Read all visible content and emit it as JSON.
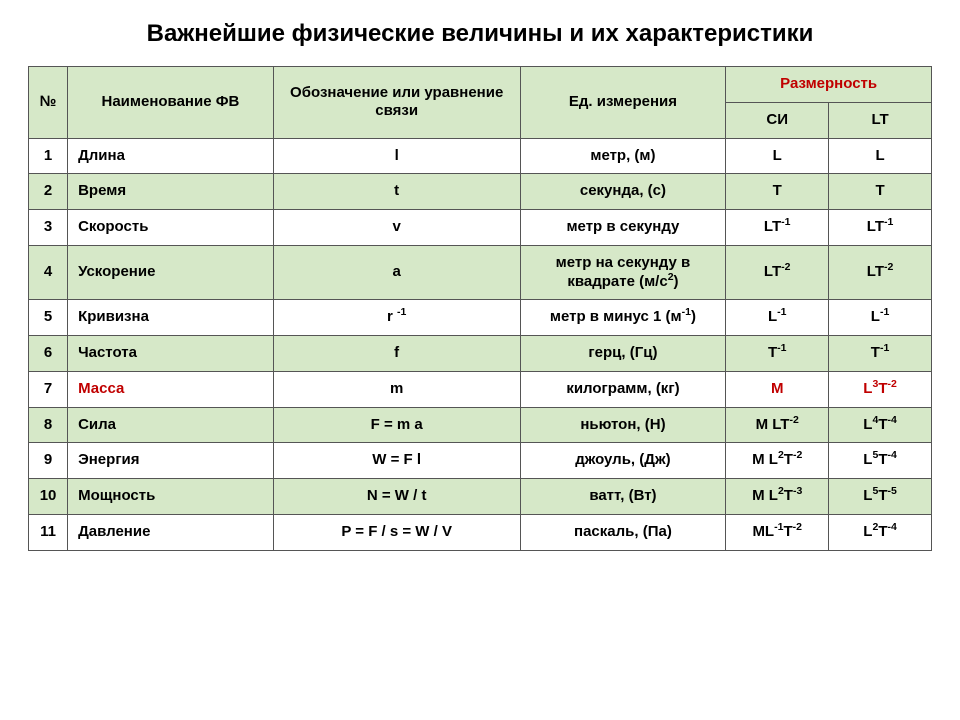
{
  "title": "Важнейшие физические величины и их характеристики",
  "columns": {
    "num": "№",
    "name": "Наименование ФВ",
    "symbol": "Обозначение или уравнение связи",
    "unit": "Ед. измерения",
    "dim_group": "Размерность",
    "si": "СИ",
    "lt": "LT"
  },
  "col_widths": [
    "38px",
    "200px",
    "240px",
    "200px",
    "100px",
    "100px"
  ],
  "header_bg": "#d6e8c8",
  "alt_bg": "#d6e8c8",
  "border_color": "#555555",
  "highlight_color": "#c00000",
  "rows": [
    {
      "n": "1",
      "name": "Длина",
      "sym_html": "l",
      "unit_html": "метр, (м)",
      "si_html": "L",
      "lt_html": "L"
    },
    {
      "n": "2",
      "name": "Время",
      "sym_html": "t",
      "unit_html": "секунда, (с)",
      "si_html": "T",
      "lt_html": "T"
    },
    {
      "n": "3",
      "name": "Скорость",
      "sym_html": "v",
      "unit_html": "метр в секунду",
      "si_html": "LT<sup>-1</sup>",
      "lt_html": "LT<sup>-1</sup>"
    },
    {
      "n": "4",
      "name": "Ускорение",
      "sym_html": "a",
      "unit_html": "метр на секунду в квадрате (м/с<sup>2</sup>)",
      "si_html": "LT<sup>-2</sup>",
      "lt_html": "LT<sup>-2</sup>"
    },
    {
      "n": "5",
      "name": "Кривизна",
      "sym_html": "r <sup>-1</sup>",
      "unit_html": "метр в минус 1 (м<sup>-1</sup>)",
      "si_html": "L<sup>-1</sup>",
      "lt_html": "L<sup>-1</sup>"
    },
    {
      "n": "6",
      "name": "Частота",
      "sym_html": "f",
      "unit_html": "герц, (Гц)",
      "si_html": "T<sup>-1</sup>",
      "lt_html": "T<sup>-1</sup>"
    },
    {
      "n": "7",
      "name": "Масса",
      "name_red": true,
      "sym_html": "m",
      "unit_html": "килограмм, (кг)",
      "si_html": "M",
      "si_red": true,
      "lt_html": "L<sup>3</sup>T<sup>-2</sup>",
      "lt_red": true
    },
    {
      "n": "8",
      "name": "Сила",
      "sym_html": "F = m a",
      "unit_html": "ньютон, (Н)",
      "si_html": "M LT<sup>-2</sup>",
      "lt_html": "L<sup>4</sup>T<sup>-4</sup>"
    },
    {
      "n": "9",
      "name": "Энергия",
      "sym_html": "W = F l",
      "unit_html": "джоуль, (Дж)",
      "si_html": "M L<sup>2</sup>T<sup>-2</sup>",
      "lt_html": "L<sup>5</sup>T<sup>-4</sup>"
    },
    {
      "n": "10",
      "name": "Мощность",
      "sym_html": "N = W / t",
      "unit_html": "ватт, (Вт)",
      "si_html": "M L<sup>2</sup>T<sup>-3</sup>",
      "lt_html": "L<sup>5</sup>T<sup>-5</sup>"
    },
    {
      "n": "11",
      "name": "Давление",
      "sym_html": "P = F / s = W / V",
      "unit_html": "паскаль, (Па)",
      "si_html": "ML<sup>-1</sup>T<sup>-2</sup>",
      "lt_html": "L<sup>2</sup>T<sup>-4</sup>"
    }
  ]
}
